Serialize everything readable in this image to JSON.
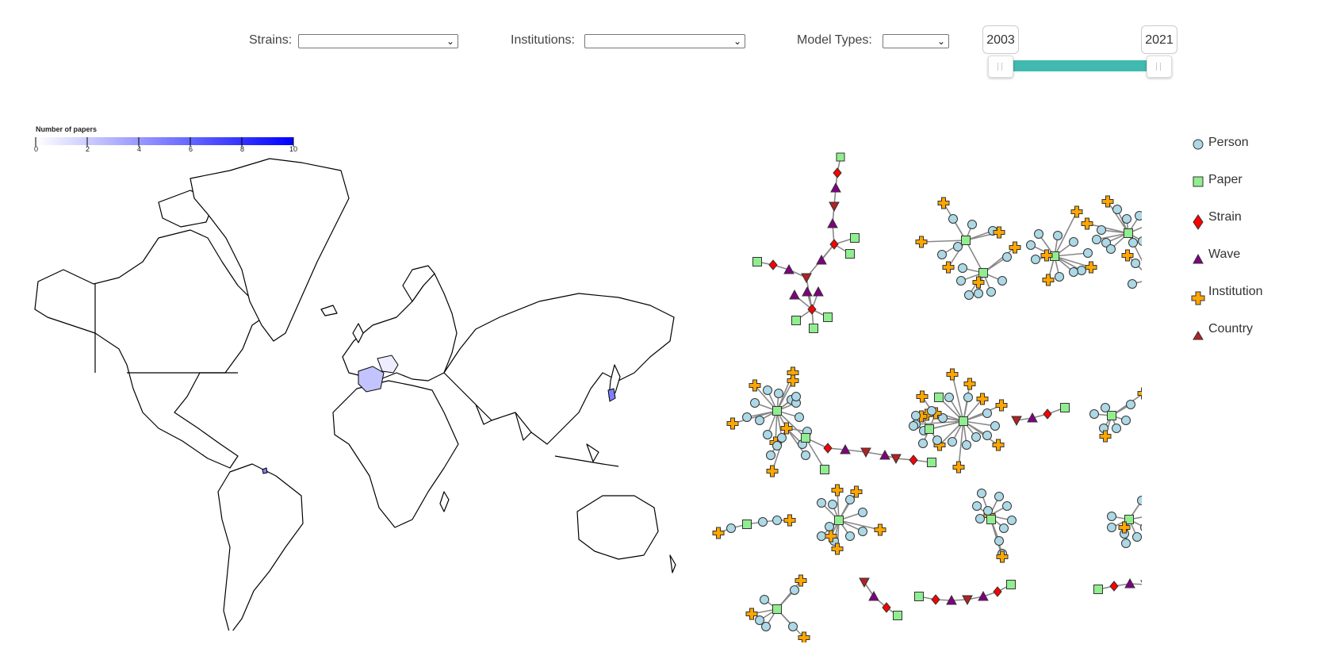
{
  "filters": {
    "strains_label": "Strains:",
    "institutions_label": "Institutions:",
    "model_types_label": "Model Types:"
  },
  "year_range": {
    "start": "2003",
    "end": "2021"
  },
  "color_scale": {
    "title": "Number of papers",
    "ticks": [
      "0",
      "2",
      "4",
      "6",
      "8",
      "10"
    ],
    "min_color": "#ffffff",
    "max_color": "#0000ff"
  },
  "legend": {
    "items": [
      {
        "label": "Person",
        "shape": "circle",
        "color": "#add8e6"
      },
      {
        "label": "Paper",
        "shape": "square",
        "color": "#90ee90"
      },
      {
        "label": "Strain",
        "shape": "diamond",
        "color": "#ff0000"
      },
      {
        "label": "Wave",
        "shape": "triangle",
        "color": "#800080"
      },
      {
        "label": "Institution",
        "shape": "cross",
        "color": "#ffa500"
      },
      {
        "label": "Country",
        "shape": "triangle",
        "color": "#b22222"
      }
    ]
  },
  "map": {
    "highlighted_countries": [
      {
        "name": "France",
        "papers": 3
      },
      {
        "name": "Germany",
        "papers": 1
      },
      {
        "name": "South Korea",
        "papers": 4
      },
      {
        "name": "Trinidad and Tobago",
        "papers": 3
      }
    ]
  }
}
